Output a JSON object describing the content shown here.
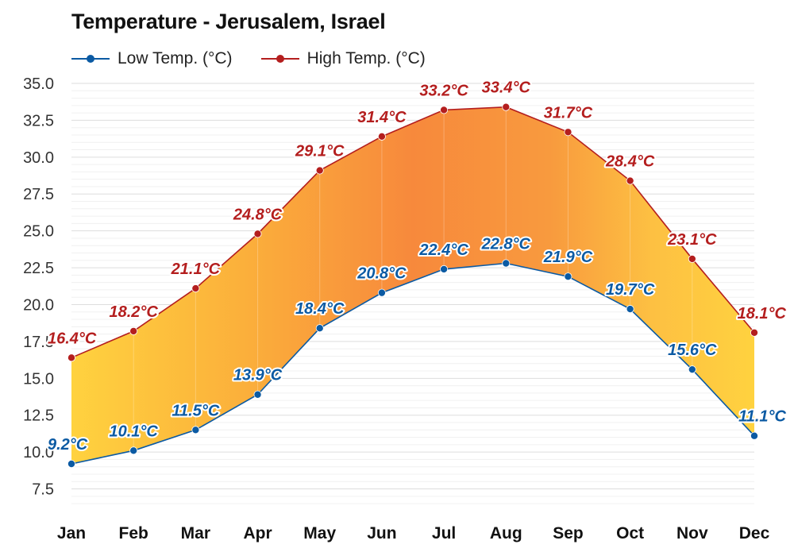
{
  "chart_data": {
    "type": "area",
    "title": "Temperature - Jerusalem, Israel",
    "xlabel": "",
    "ylabel": "",
    "categories": [
      "Jan",
      "Feb",
      "Mar",
      "Apr",
      "May",
      "Jun",
      "Jul",
      "Aug",
      "Sep",
      "Oct",
      "Nov",
      "Dec"
    ],
    "ylim": [
      6,
      35
    ],
    "yticks": [
      7.5,
      10.0,
      12.5,
      15.0,
      17.5,
      20.0,
      22.5,
      25.0,
      27.5,
      30.0,
      32.5,
      35.0
    ],
    "grid": true,
    "legend_position": "top-left",
    "series": [
      {
        "name": "Low Temp. (°C)",
        "color": "#0b5aa3",
        "values": [
          9.2,
          10.1,
          11.5,
          13.9,
          18.4,
          20.8,
          22.4,
          22.8,
          21.9,
          19.7,
          15.6,
          11.1
        ],
        "labels": [
          "9.2°C",
          "10.1°C",
          "11.5°C",
          "13.9°C",
          "18.4°C",
          "20.8°C",
          "22.4°C",
          "22.8°C",
          "21.9°C",
          "19.7°C",
          "15.6°C",
          "11.1°C"
        ]
      },
      {
        "name": "High Temp. (°C)",
        "color": "#b41e1e",
        "values": [
          16.4,
          18.2,
          21.1,
          24.8,
          29.1,
          31.4,
          33.2,
          33.4,
          31.7,
          28.4,
          23.1,
          18.1
        ],
        "labels": [
          "16.4°C",
          "18.2°C",
          "21.1°C",
          "24.8°C",
          "29.1°C",
          "31.4°C",
          "33.2°C",
          "33.4°C",
          "31.7°C",
          "28.4°C",
          "23.1°C",
          "18.1°C"
        ]
      }
    ]
  }
}
